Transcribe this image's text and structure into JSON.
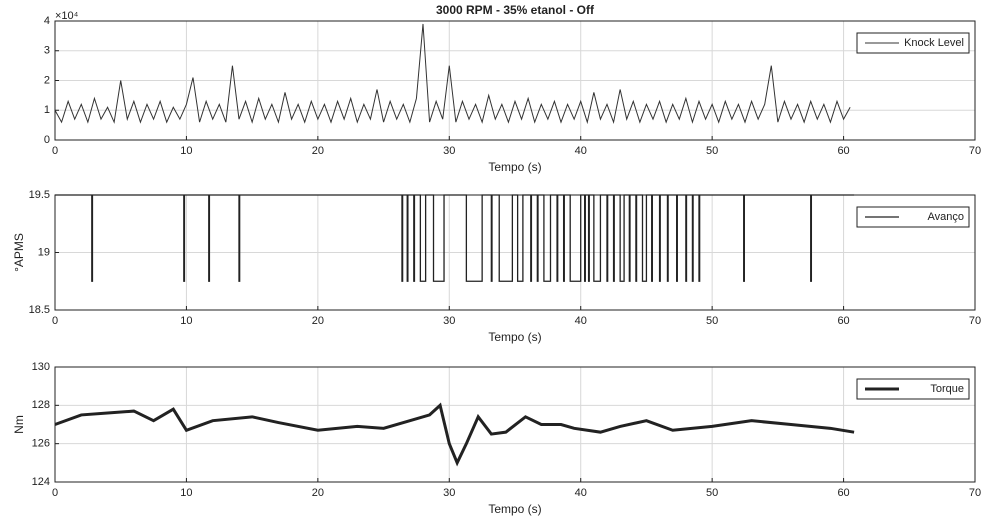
{
  "chart_data": [
    {
      "type": "line",
      "title": "3000 RPM - 35% etanol - Off",
      "xlabel": "Tempo (s)",
      "y_exponent_label": "×10⁴",
      "xlim": [
        0,
        70
      ],
      "xticks": [
        0,
        10,
        20,
        30,
        40,
        50,
        60,
        70
      ],
      "ylim": [
        0,
        4
      ],
      "yticks": [
        0,
        1,
        2,
        3,
        4
      ],
      "grid": true,
      "legend": "upper right",
      "x": [
        0,
        0.5,
        1,
        1.5,
        2,
        2.5,
        3,
        3.5,
        4,
        4.5,
        5,
        5.5,
        6,
        6.5,
        7,
        7.5,
        8,
        8.5,
        9,
        9.5,
        10,
        10.5,
        11,
        11.5,
        12,
        12.5,
        13,
        13.5,
        14,
        14.5,
        15,
        15.5,
        16,
        16.5,
        17,
        17.5,
        18,
        18.5,
        19,
        19.5,
        20,
        20.5,
        21,
        21.5,
        22,
        22.5,
        23,
        23.5,
        24,
        24.5,
        25,
        25.5,
        26,
        26.5,
        27,
        27.5,
        28,
        28.5,
        29,
        29.5,
        30,
        30.5,
        31,
        31.5,
        32,
        32.5,
        33,
        33.5,
        34,
        34.5,
        35,
        35.5,
        36,
        36.5,
        37,
        37.5,
        38,
        38.5,
        39,
        39.5,
        40,
        40.5,
        41,
        41.5,
        42,
        42.5,
        43,
        43.5,
        44,
        44.5,
        45,
        45.5,
        46,
        46.5,
        47,
        47.5,
        48,
        48.5,
        49,
        49.5,
        50,
        50.5,
        51,
        51.5,
        52,
        52.5,
        53,
        53.5,
        54,
        54.5,
        55,
        55.5,
        56,
        56.5,
        57,
        57.5,
        58,
        58.5,
        59,
        59.5,
        60,
        60.5
      ],
      "series": [
        {
          "name": "Knock Level",
          "color": "#333333",
          "width": 1,
          "values": [
            1.0,
            0.6,
            1.3,
            0.7,
            1.2,
            0.6,
            1.4,
            0.7,
            1.1,
            0.6,
            2.0,
            0.7,
            1.3,
            0.6,
            1.2,
            0.7,
            1.3,
            0.6,
            1.1,
            0.7,
            1.2,
            2.1,
            0.6,
            1.3,
            0.7,
            1.2,
            0.6,
            2.5,
            0.7,
            1.3,
            0.6,
            1.4,
            0.7,
            1.2,
            0.6,
            1.6,
            0.7,
            1.2,
            0.6,
            1.3,
            0.7,
            1.2,
            0.6,
            1.3,
            0.7,
            1.4,
            0.6,
            1.2,
            0.7,
            1.7,
            0.6,
            1.3,
            0.7,
            1.2,
            0.6,
            1.4,
            3.9,
            0.6,
            1.3,
            0.7,
            2.5,
            0.6,
            1.3,
            0.7,
            1.2,
            0.6,
            1.5,
            0.7,
            1.2,
            0.6,
            1.3,
            0.7,
            1.4,
            0.6,
            1.2,
            0.7,
            1.3,
            0.6,
            1.2,
            0.7,
            1.3,
            0.6,
            1.6,
            0.7,
            1.2,
            0.6,
            1.7,
            0.7,
            1.3,
            0.6,
            1.2,
            0.7,
            1.3,
            0.6,
            1.2,
            0.7,
            1.4,
            0.6,
            1.3,
            0.7,
            1.2,
            0.6,
            1.3,
            0.7,
            1.2,
            0.6,
            1.3,
            0.7,
            1.2,
            2.5,
            0.6,
            1.3,
            0.7,
            1.2,
            0.6,
            1.3,
            0.7,
            1.2,
            0.6,
            1.3,
            0.7,
            1.1
          ]
        }
      ]
    },
    {
      "type": "line",
      "xlabel": "Tempo (s)",
      "ylabel": "°APMS",
      "xlim": [
        0,
        70
      ],
      "xticks": [
        0,
        10,
        20,
        30,
        40,
        50,
        60,
        70
      ],
      "ylim": [
        18.5,
        19.5
      ],
      "yticks": [
        18.5,
        19,
        19.5
      ],
      "grid": true,
      "legend": "upper right",
      "x": [
        0,
        2.8,
        2.8,
        2.85,
        2.85,
        9.8,
        9.8,
        9.85,
        9.85,
        11.7,
        11.7,
        11.75,
        11.75,
        14,
        14,
        14.05,
        14.05,
        26.4,
        26.4,
        26.45,
        26.45,
        26.8,
        26.8,
        26.85,
        26.85,
        27.3,
        27.3,
        27.35,
        27.35,
        27.8,
        27.8,
        28.2,
        28.2,
        28.8,
        28.8,
        29.6,
        29.6,
        31.3,
        31.3,
        32.5,
        32.5,
        33.2,
        33.2,
        33.25,
        33.25,
        33.8,
        33.8,
        34.8,
        34.8,
        35.2,
        35.2,
        35.6,
        35.6,
        36.2,
        36.2,
        36.25,
        36.25,
        36.7,
        36.7,
        36.75,
        36.75,
        37.2,
        37.2,
        37.7,
        37.7,
        38.2,
        38.2,
        38.25,
        38.25,
        38.7,
        38.7,
        38.75,
        38.75,
        39.2,
        39.2,
        40,
        40,
        40.3,
        40.3,
        40.35,
        40.35,
        40.6,
        40.6,
        40.65,
        40.65,
        41,
        41,
        41.5,
        41.5,
        42,
        42,
        42.05,
        42.05,
        42.5,
        42.5,
        42.55,
        42.55,
        43,
        43,
        43.3,
        43.3,
        43.7,
        43.7,
        43.75,
        43.75,
        44.2,
        44.2,
        44.25,
        44.25,
        44.7,
        44.7,
        45,
        45,
        45.4,
        45.4,
        45.45,
        45.45,
        46,
        46,
        46.05,
        46.05,
        46.6,
        46.6,
        46.65,
        46.65,
        47.3,
        47.3,
        47.35,
        47.35,
        48,
        48,
        48.05,
        48.05,
        48.5,
        48.5,
        48.55,
        48.55,
        49,
        49,
        49.05,
        49.05,
        52.4,
        52.4,
        52.45,
        52.45,
        57.5,
        57.5,
        57.55,
        57.55,
        60.8
      ],
      "series": [
        {
          "name": "Avanço",
          "color": "#222222",
          "width": 1.3,
          "values": [
            19.5,
            19.5,
            18.75,
            18.75,
            19.5,
            19.5,
            18.75,
            18.75,
            19.5,
            19.5,
            18.75,
            18.75,
            19.5,
            19.5,
            18.75,
            18.75,
            19.5,
            19.5,
            18.75,
            18.75,
            19.5,
            19.5,
            18.75,
            18.75,
            19.5,
            19.5,
            18.75,
            18.75,
            19.5,
            19.5,
            18.75,
            18.75,
            19.5,
            19.5,
            18.75,
            18.75,
            19.5,
            19.5,
            18.75,
            18.75,
            19.5,
            19.5,
            18.75,
            18.75,
            19.5,
            19.5,
            18.75,
            18.75,
            19.5,
            19.5,
            18.75,
            18.75,
            19.5,
            19.5,
            18.75,
            18.75,
            19.5,
            19.5,
            18.75,
            18.75,
            19.5,
            19.5,
            18.75,
            18.75,
            19.5,
            19.5,
            18.75,
            18.75,
            19.5,
            19.5,
            18.75,
            18.75,
            19.5,
            19.5,
            18.75,
            18.75,
            19.5,
            19.5,
            18.75,
            18.75,
            19.5,
            19.5,
            18.75,
            18.75,
            19.5,
            19.5,
            18.75,
            18.75,
            19.5,
            19.5,
            18.75,
            18.75,
            19.5,
            19.5,
            18.75,
            18.75,
            19.5,
            19.5,
            18.75,
            18.75,
            19.5,
            19.5,
            18.75,
            18.75,
            19.5,
            19.5,
            18.75,
            18.75,
            19.5,
            19.5,
            18.75,
            18.75,
            19.5,
            19.5,
            18.75,
            18.75,
            19.5,
            19.5,
            18.75,
            18.75,
            19.5,
            19.5,
            18.75,
            18.75,
            19.5,
            19.5,
            18.75,
            18.75,
            19.5,
            19.5,
            18.75,
            18.75,
            19.5,
            19.5,
            18.75,
            18.75,
            19.5,
            19.5,
            18.75,
            18.75,
            19.5,
            19.5,
            18.75,
            18.75,
            19.5,
            19.5,
            18.75,
            18.75,
            19.5,
            19.5
          ]
        }
      ]
    },
    {
      "type": "line",
      "xlabel": "Tempo (s)",
      "ylabel": "Nm",
      "xlim": [
        0,
        70
      ],
      "xticks": [
        0,
        10,
        20,
        30,
        40,
        50,
        60,
        70
      ],
      "ylim": [
        124,
        130
      ],
      "yticks": [
        124,
        126,
        128,
        130
      ],
      "grid": true,
      "legend": "upper right",
      "x": [
        0,
        2,
        4,
        6,
        7.5,
        9,
        10,
        12,
        15,
        17,
        20,
        23,
        25,
        27,
        28.5,
        29.3,
        30,
        30.6,
        31.3,
        32.2,
        33.2,
        34.3,
        35.8,
        37,
        38.5,
        39.5,
        41.5,
        43,
        45,
        47,
        50,
        53,
        56,
        59,
        60.8
      ],
      "series": [
        {
          "name": "Torque",
          "color": "#222222",
          "width": 3,
          "values": [
            127,
            127.5,
            127.6,
            127.7,
            127.2,
            127.8,
            126.7,
            127.2,
            127.4,
            127.1,
            126.7,
            126.9,
            126.8,
            127.2,
            127.5,
            128,
            126,
            125,
            126,
            127.4,
            126.5,
            126.6,
            127.4,
            127,
            127,
            126.8,
            126.6,
            126.9,
            127.2,
            126.7,
            126.9,
            127.2,
            127,
            126.8,
            126.6
          ]
        }
      ]
    }
  ]
}
